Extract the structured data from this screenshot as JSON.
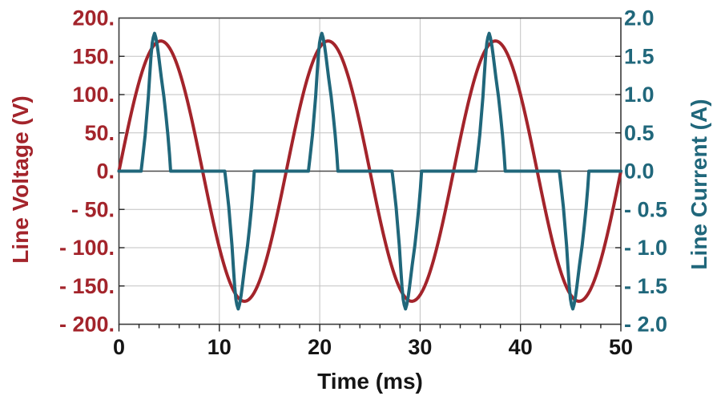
{
  "chart_data": {
    "type": "line",
    "title": "",
    "xlabel": "Time (ms)",
    "x_axis": {
      "min": 0,
      "max": 50,
      "major_step": 10,
      "minor_step": 2,
      "tick_labels": [
        "0",
        "10",
        "20",
        "30",
        "40",
        "50"
      ]
    },
    "y_left": {
      "label": "Line Voltage (V)",
      "min": -200,
      "max": 200,
      "major_step": 50,
      "tick_labels": [
        "200.",
        "150.",
        "100.",
        "50.",
        "0.",
        "- 50.",
        "- 100.",
        "- 150.",
        "- 200."
      ],
      "color": "#A3242B"
    },
    "y_right": {
      "label": "Line Current (A)",
      "min": -2.0,
      "max": 2.0,
      "major_step": 0.5,
      "tick_labels": [
        "2.0",
        "1.5",
        "1.0",
        "0.5",
        "0.0",
        "- 0.5",
        "- 1.0",
        "- 1.5",
        "- 2.0"
      ],
      "color": "#20677B"
    },
    "grid": {
      "horizontal_lines_V": [
        -150,
        -100,
        -50,
        50,
        100,
        150
      ],
      "vertical_lines_ms": [
        10,
        20,
        30,
        40
      ],
      "zero_line_V": 0,
      "grid_color": "#C2C2C2",
      "zero_line_color": "#4A4A4A",
      "frame_color": "#3A3A3A"
    },
    "series": [
      {
        "name": "line-voltage",
        "axis": "left",
        "waveform": "sine",
        "amplitude_V": 170,
        "period_ms": 16.667,
        "phase_deg": 0,
        "cycles_shown": 3,
        "color": "#A3242B",
        "stroke_width": 4
      },
      {
        "name": "line-current",
        "axis": "right",
        "waveform": "pulse-train",
        "peak_A": 1.8,
        "baseline_A": 0.0,
        "pulse_centers_ms": [
          4.167,
          12.5,
          20.833,
          29.167,
          37.5,
          45.833
        ],
        "pulse_signs": [
          1,
          -1,
          1,
          -1,
          1,
          -1
        ],
        "pulse_profile_dt_frac": [
          [
            -1.96,
            0.0
          ],
          [
            -1.8,
            0.1
          ],
          [
            -1.56,
            0.26
          ],
          [
            -1.4,
            0.4
          ],
          [
            -1.24,
            0.54
          ],
          [
            -1.1,
            0.7
          ],
          [
            -0.97,
            0.84
          ],
          [
            -0.85,
            0.93
          ],
          [
            -0.75,
            0.97
          ],
          [
            -0.62,
            1.0
          ],
          [
            -0.5,
            0.97
          ],
          [
            -0.35,
            0.91
          ],
          [
            -0.22,
            0.84
          ],
          [
            0.05,
            0.68
          ],
          [
            0.31,
            0.54
          ],
          [
            0.52,
            0.4
          ],
          [
            0.71,
            0.26
          ],
          [
            0.87,
            0.12
          ],
          [
            0.98,
            0.0
          ]
        ],
        "color": "#20677B",
        "stroke_width": 4
      }
    ],
    "tick_text_color": "#151515",
    "legend": "none",
    "background": "#ffffff"
  }
}
